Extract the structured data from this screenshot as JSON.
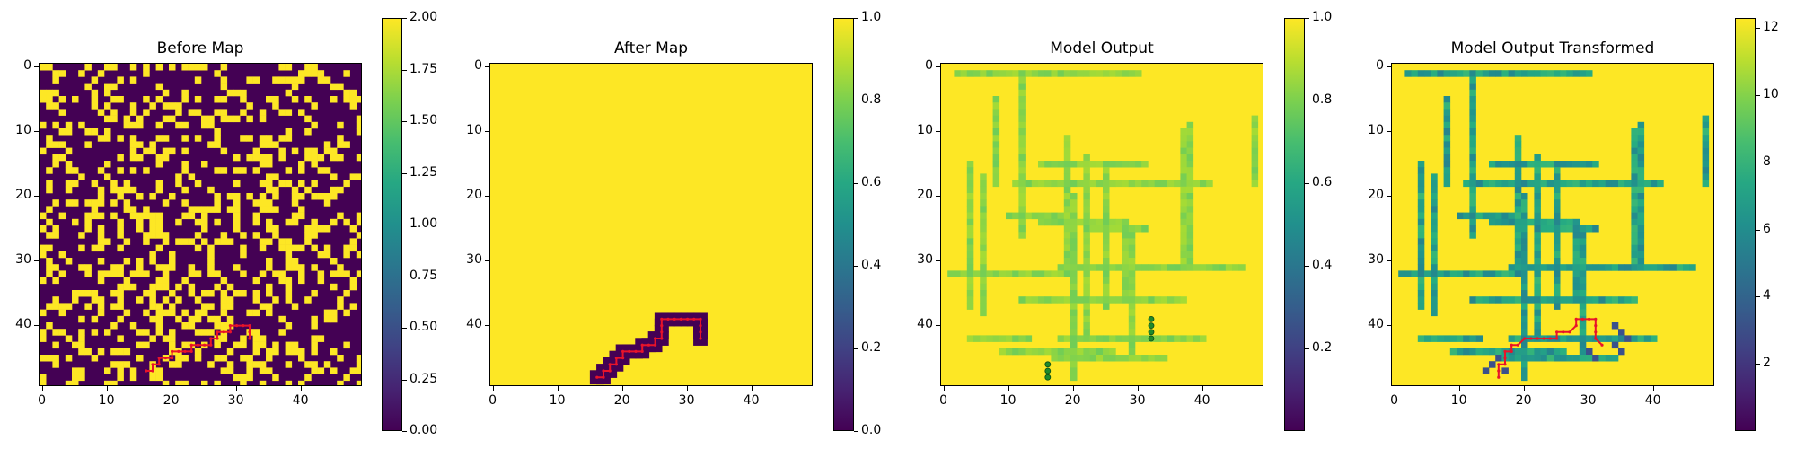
{
  "colormap": "viridis",
  "path_color": "#e8132a",
  "marker_color": "#1d8a2c",
  "chart_data": [
    {
      "type": "heatmap",
      "title": "Before Map",
      "grid_size": 50,
      "map_kind": "random_binary",
      "values_present": [
        0,
        2
      ],
      "xticks": [
        0,
        10,
        20,
        30,
        40
      ],
      "yticks": [
        0,
        10,
        20,
        30,
        40
      ],
      "colorbar": {
        "min": 0.0,
        "max": 2.0,
        "ticks": [
          "0.00",
          "0.25",
          "0.50",
          "0.75",
          "1.00",
          "1.25",
          "1.50",
          "1.75",
          "2.00"
        ]
      },
      "path": [
        [
          16,
          47
        ],
        [
          17,
          47
        ],
        [
          17,
          46
        ],
        [
          18,
          46
        ],
        [
          18,
          45
        ],
        [
          19,
          45
        ],
        [
          20,
          45
        ],
        [
          20,
          44
        ],
        [
          21,
          44
        ],
        [
          22,
          44
        ],
        [
          23,
          44
        ],
        [
          23,
          43
        ],
        [
          24,
          43
        ],
        [
          25,
          43
        ],
        [
          26,
          43
        ],
        [
          26,
          42
        ],
        [
          27,
          42
        ],
        [
          27,
          41
        ],
        [
          28,
          41
        ],
        [
          29,
          41
        ],
        [
          29,
          40
        ],
        [
          30,
          40
        ],
        [
          31,
          40
        ],
        [
          32,
          40
        ],
        [
          32,
          41
        ],
        [
          32,
          42
        ]
      ]
    },
    {
      "type": "heatmap",
      "title": "After Map",
      "grid_size": 50,
      "map_kind": "uniform_with_path_region",
      "background_value": 1.0,
      "xticks": [
        0,
        10,
        20,
        30,
        40
      ],
      "yticks": [
        0,
        10,
        20,
        30,
        40
      ],
      "colorbar": {
        "min": 0.0,
        "max": 1.0,
        "ticks": [
          "0.0",
          "0.2",
          "0.4",
          "0.6",
          "0.8",
          "1.0"
        ]
      },
      "path": [
        [
          16,
          48
        ],
        [
          17,
          48
        ],
        [
          17,
          47
        ],
        [
          18,
          47
        ],
        [
          18,
          46
        ],
        [
          19,
          46
        ],
        [
          19,
          45
        ],
        [
          20,
          45
        ],
        [
          20,
          44
        ],
        [
          21,
          44
        ],
        [
          22,
          44
        ],
        [
          23,
          44
        ],
        [
          23,
          43
        ],
        [
          24,
          43
        ],
        [
          25,
          43
        ],
        [
          25,
          42
        ],
        [
          26,
          42
        ],
        [
          26,
          41
        ],
        [
          26,
          40
        ],
        [
          26,
          39
        ],
        [
          27,
          39
        ],
        [
          28,
          39
        ],
        [
          29,
          39
        ],
        [
          30,
          39
        ],
        [
          31,
          39
        ],
        [
          32,
          39
        ],
        [
          32,
          40
        ],
        [
          32,
          41
        ],
        [
          32,
          42
        ]
      ]
    },
    {
      "type": "heatmap",
      "title": "Model Output",
      "grid_size": 50,
      "map_kind": "probability_field",
      "xticks": [
        0,
        10,
        20,
        30,
        40
      ],
      "yticks": [
        0,
        10,
        20,
        30,
        40
      ],
      "colorbar": {
        "min": 0.0,
        "max": 1.0,
        "ticks": [
          "0.2",
          "0.4",
          "0.6",
          "0.8",
          "1.0"
        ]
      },
      "markers": [
        [
          32,
          39
        ],
        [
          32,
          40
        ],
        [
          32,
          41
        ],
        [
          32,
          42
        ],
        [
          16,
          46
        ],
        [
          16,
          47
        ],
        [
          16,
          48
        ]
      ]
    },
    {
      "type": "heatmap",
      "title": "Model Output Transformed",
      "grid_size": 50,
      "map_kind": "transformed_field",
      "xticks": [
        0,
        10,
        20,
        30,
        40
      ],
      "yticks": [
        0,
        10,
        20,
        30,
        40
      ],
      "colorbar": {
        "min": 0.0,
        "max": 12.3,
        "ticks": [
          "2",
          "4",
          "6",
          "8",
          "10",
          "12"
        ]
      },
      "path": [
        [
          16,
          48
        ],
        [
          16,
          47
        ],
        [
          16,
          46
        ],
        [
          17,
          46
        ],
        [
          17,
          45
        ],
        [
          17,
          44
        ],
        [
          18,
          44
        ],
        [
          18,
          43
        ],
        [
          19,
          43
        ],
        [
          20,
          42
        ],
        [
          21,
          42
        ],
        [
          22,
          42
        ],
        [
          23,
          42
        ],
        [
          24,
          42
        ],
        [
          25,
          42
        ],
        [
          25,
          41
        ],
        [
          26,
          41
        ],
        [
          27,
          41
        ],
        [
          28,
          40
        ],
        [
          28,
          39
        ],
        [
          29,
          39
        ],
        [
          30,
          39
        ],
        [
          31,
          39
        ],
        [
          31,
          40
        ],
        [
          31,
          41
        ],
        [
          31,
          42
        ],
        [
          32,
          43
        ]
      ]
    }
  ]
}
